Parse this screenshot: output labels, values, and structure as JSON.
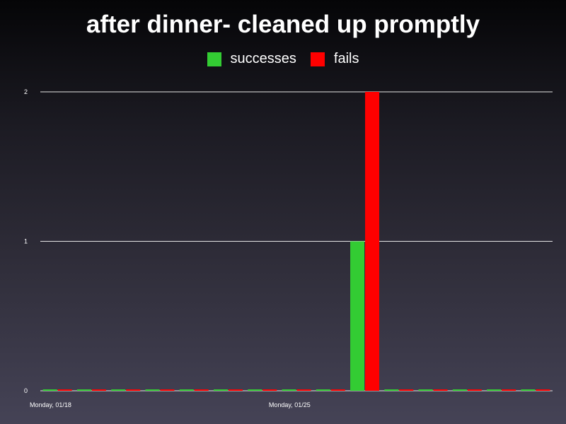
{
  "chart_data": {
    "type": "bar",
    "title": "after dinner- cleaned up promptly",
    "xlabel": "",
    "ylabel": "",
    "ylim": [
      0,
      2
    ],
    "yticks": [
      0,
      1,
      2
    ],
    "grid": true,
    "legend_position": "top-center",
    "categories": [
      "Monday, 01/18",
      "",
      "",
      "",
      "",
      "",
      "",
      "Monday, 01/25",
      "",
      "",
      "",
      "",
      "",
      "",
      ""
    ],
    "series": [
      {
        "name": "successes",
        "color": "#33cc33",
        "values": [
          0,
          0,
          0,
          0,
          0,
          0,
          0,
          0,
          0,
          1,
          0,
          0,
          0,
          0,
          0
        ]
      },
      {
        "name": "fails",
        "color": "#ff0000",
        "values": [
          0,
          0,
          0,
          0,
          0,
          0,
          0,
          0,
          0,
          2,
          0,
          0,
          0,
          0,
          0
        ]
      }
    ]
  }
}
